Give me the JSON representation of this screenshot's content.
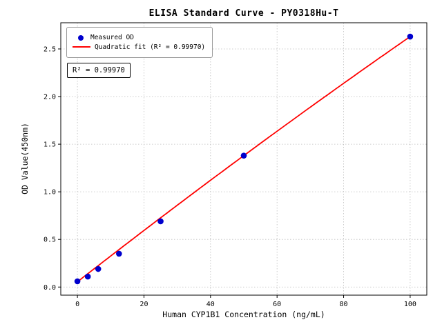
{
  "chart_data": {
    "type": "scatter",
    "title": "ELISA Standard Curve - PY0318Hu-T",
    "xlabel": "Human CYP1B1 Concentration (ng/mL)",
    "ylabel": "OD Value(450nm)",
    "xlim": [
      -5,
      105
    ],
    "ylim": [
      -0.085,
      2.775
    ],
    "xticks": [
      0,
      20,
      40,
      60,
      80,
      100
    ],
    "xtick_labels": [
      "0",
      "20",
      "40",
      "60",
      "80",
      "100"
    ],
    "yticks": [
      0,
      0.5,
      1.0,
      1.5,
      2.0,
      2.5
    ],
    "ytick_labels": [
      "0.0",
      "0.5",
      "1.0",
      "1.5",
      "2.0",
      "2.5"
    ],
    "grid": true,
    "points": [
      {
        "x": 0,
        "od": 0.06
      },
      {
        "x": 3.125,
        "od": 0.11
      },
      {
        "x": 6.25,
        "od": 0.19
      },
      {
        "x": 12.5,
        "od": 0.35
      },
      {
        "x": 25,
        "od": 0.69
      },
      {
        "x": 50,
        "od": 1.38
      },
      {
        "x": 100,
        "od": 2.63
      }
    ],
    "fit": {
      "kind": "quadratic",
      "x_start": 0,
      "x_end": 100,
      "coefficients": {
        "a": 0.055,
        "b": 0.02725,
        "c": -1.5e-05
      },
      "r_squared": "0.99970"
    },
    "legend": {
      "position": "upper left",
      "items": [
        {
          "label": "Measured OD",
          "marker": "dot",
          "color": "#0000cd"
        },
        {
          "label": "Quadratic fit (R² = 0.99970)",
          "marker": "line",
          "color": "#ff0000"
        }
      ]
    },
    "annotation": "R² = 0.99970",
    "colors": {
      "points": "#0000cd",
      "fit_line": "#ff0000",
      "grid": "#bdbdbd",
      "frame": "#000000"
    }
  }
}
